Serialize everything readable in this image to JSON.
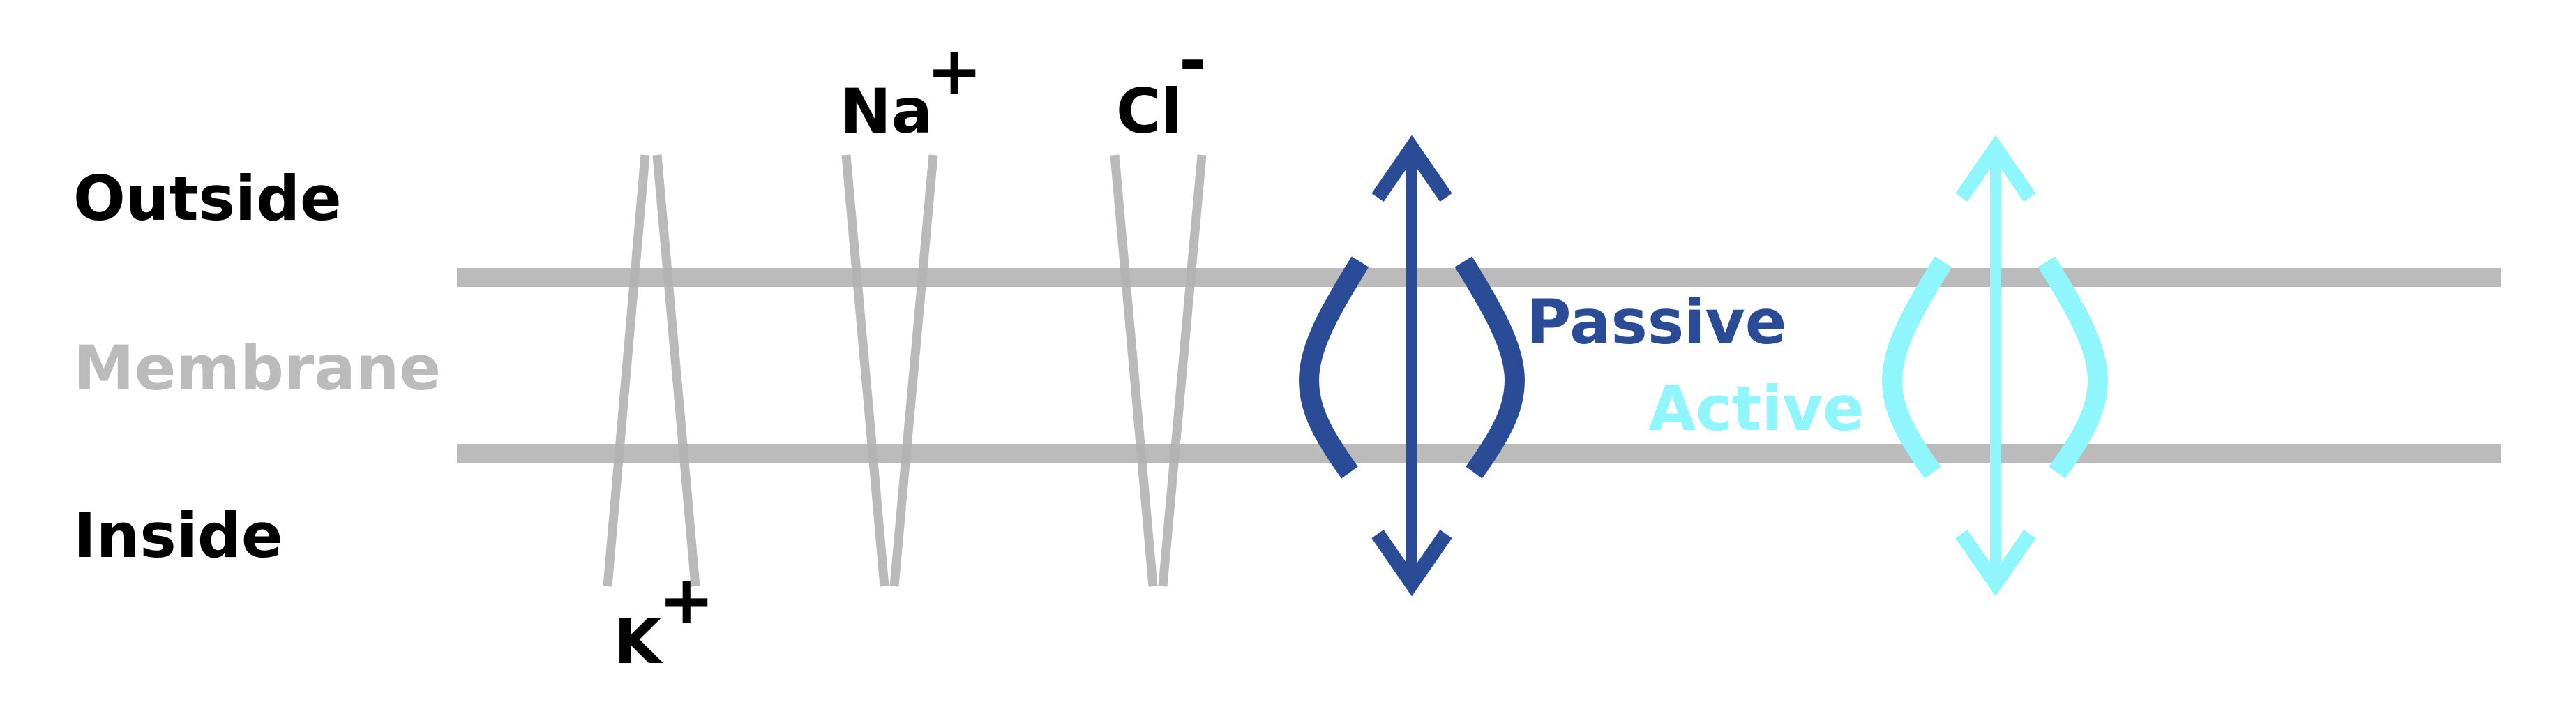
{
  "labels": {
    "outside": "Outside",
    "membrane": "Membrane",
    "inside": "Inside"
  },
  "ions": {
    "k": {
      "symbol": "K",
      "charge": "+"
    },
    "na": {
      "symbol": "Na",
      "charge": "+"
    },
    "cl": {
      "symbol": "Cl",
      "charge": "-"
    }
  },
  "transport": {
    "passive": "Passive",
    "active": "Active"
  },
  "colors": {
    "membrane": "#bbbbbb",
    "channel": "#b3b3b3",
    "text": "#000000",
    "passive": "#2a4b96",
    "active": "#8ef6fc"
  }
}
